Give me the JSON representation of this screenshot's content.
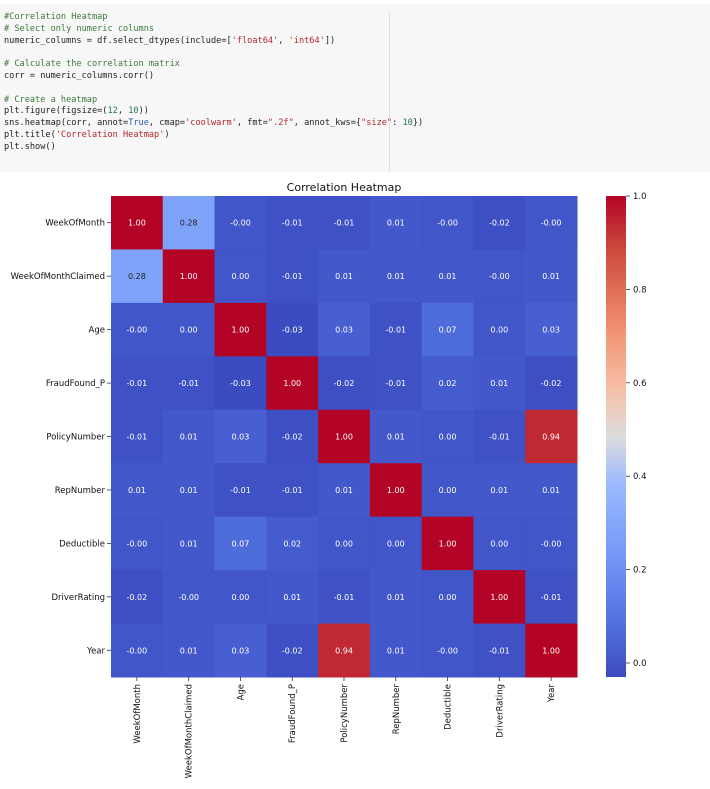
{
  "code_cell": {
    "lines": [
      [
        {
          "t": "#Correlation Heatmap",
          "k": "comment"
        }
      ],
      [
        {
          "t": "# Select only numeric columns",
          "k": "comment"
        }
      ],
      [
        {
          "t": "numeric_columns = df.select_dtypes(include=[",
          "k": "plain"
        },
        {
          "t": "'float64'",
          "k": "string"
        },
        {
          "t": ", ",
          "k": "plain"
        },
        {
          "t": "'int64'",
          "k": "string"
        },
        {
          "t": "])",
          "k": "plain"
        }
      ],
      [
        {
          "t": "",
          "k": "plain"
        }
      ],
      [
        {
          "t": "# Calculate the correlation matrix",
          "k": "comment"
        }
      ],
      [
        {
          "t": "corr = numeric_columns.corr()",
          "k": "plain"
        }
      ],
      [
        {
          "t": "",
          "k": "plain"
        }
      ],
      [
        {
          "t": "# Create a heatmap",
          "k": "comment"
        }
      ],
      [
        {
          "t": "plt.figure(figsize=(",
          "k": "plain"
        },
        {
          "t": "12",
          "k": "number"
        },
        {
          "t": ", ",
          "k": "plain"
        },
        {
          "t": "10",
          "k": "number"
        },
        {
          "t": "))",
          "k": "plain"
        }
      ],
      [
        {
          "t": "sns.heatmap(corr, annot=",
          "k": "plain"
        },
        {
          "t": "True",
          "k": "keyword"
        },
        {
          "t": ", cmap=",
          "k": "plain"
        },
        {
          "t": "'coolwarm'",
          "k": "string"
        },
        {
          "t": ", fmt=",
          "k": "plain"
        },
        {
          "t": "\".2f\"",
          "k": "string"
        },
        {
          "t": ", annot_kws={",
          "k": "plain"
        },
        {
          "t": "\"size\"",
          "k": "string"
        },
        {
          "t": ": ",
          "k": "plain"
        },
        {
          "t": "10",
          "k": "number"
        },
        {
          "t": "})",
          "k": "plain"
        }
      ],
      [
        {
          "t": "plt.title(",
          "k": "plain"
        },
        {
          "t": "'Correlation Heatmap'",
          "k": "string"
        },
        {
          "t": ")",
          "k": "plain"
        }
      ],
      [
        {
          "t": "plt.show()",
          "k": "plain"
        }
      ]
    ]
  },
  "chart_data": {
    "type": "heatmap",
    "title": "Correlation Heatmap",
    "xlabel": "",
    "ylabel": "",
    "categories": [
      "WeekOfMonth",
      "WeekOfMonthClaimed",
      "Age",
      "FraudFound_P",
      "PolicyNumber",
      "RepNumber",
      "Deductible",
      "DriverRating",
      "Year"
    ],
    "values": [
      [
        1.0,
        0.28,
        -0.0,
        -0.01,
        -0.01,
        0.01,
        -0.0,
        -0.02,
        -0.0
      ],
      [
        0.28,
        1.0,
        0.0,
        -0.01,
        0.01,
        0.01,
        0.01,
        -0.0,
        0.01
      ],
      [
        -0.0,
        0.0,
        1.0,
        -0.03,
        0.03,
        -0.01,
        0.07,
        0.0,
        0.03
      ],
      [
        -0.01,
        -0.01,
        -0.03,
        1.0,
        -0.02,
        -0.01,
        0.02,
        0.01,
        -0.02
      ],
      [
        -0.01,
        0.01,
        0.03,
        -0.02,
        1.0,
        0.01,
        0.0,
        -0.01,
        0.94
      ],
      [
        0.01,
        0.01,
        -0.01,
        -0.01,
        0.01,
        1.0,
        0.0,
        0.01,
        0.01
      ],
      [
        -0.0,
        0.01,
        0.07,
        0.02,
        0.0,
        0.0,
        1.0,
        0.0,
        -0.0
      ],
      [
        -0.02,
        -0.0,
        0.0,
        0.01,
        -0.01,
        0.01,
        0.0,
        1.0,
        -0.01
      ],
      [
        -0.0,
        0.01,
        0.03,
        -0.02,
        0.94,
        0.01,
        -0.0,
        -0.01,
        1.0
      ]
    ],
    "annot_format": ".2f",
    "colormap": "coolwarm",
    "colorbar": {
      "range": [
        -0.03,
        1.0
      ],
      "ticks": [
        0.0,
        0.2,
        0.4,
        0.6,
        0.8,
        1.0
      ],
      "tick_labels": [
        "0.0",
        "0.2",
        "0.4",
        "0.6",
        "0.8",
        "1.0"
      ]
    }
  }
}
